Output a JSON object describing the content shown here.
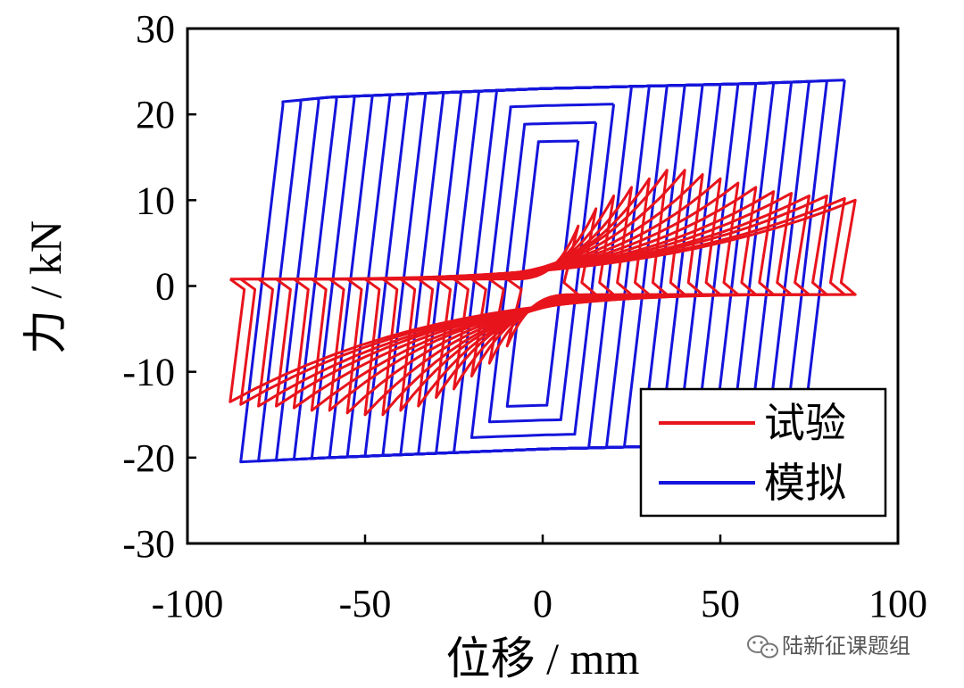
{
  "watermark": {
    "text": "陆新征课题组",
    "icon": "wechat-icon",
    "color": "#777777"
  },
  "chart_data": {
    "type": "line",
    "title": "",
    "xlabel": "位移 / mm",
    "ylabel": "力 / kN",
    "xlim": [
      -100,
      100
    ],
    "ylim": [
      -30,
      30
    ],
    "xticks": [
      -100,
      -50,
      0,
      50,
      100
    ],
    "yticks": [
      -30,
      -20,
      -10,
      0,
      10,
      20,
      30
    ],
    "xtick_labels": [
      "-100",
      "-50",
      "0",
      "50",
      "100"
    ],
    "ytick_labels": [
      "-30",
      "-20",
      "-10",
      "0",
      "10",
      "20",
      "30"
    ],
    "grid": false,
    "legend_position": "bottom-right",
    "series": [
      {
        "name": "试验",
        "color": "#e8141c",
        "kind": "pinched-hysteresis",
        "envelope_x": [
          5,
          10,
          15,
          20,
          25,
          30,
          35,
          40,
          45,
          50,
          55,
          60,
          65,
          70,
          75,
          80,
          85,
          88
        ],
        "envelope_pos_y": [
          5.5,
          7.0,
          9.0,
          10.5,
          11.5,
          12.5,
          13.5,
          13.5,
          13.0,
          12.5,
          12.0,
          11.5,
          11.0,
          10.8,
          10.5,
          10.5,
          10.2,
          10.0
        ],
        "envelope_neg_y": [
          -5.0,
          -7.0,
          -9.0,
          -10.5,
          -12.0,
          -13.0,
          -14.0,
          -14.5,
          -15.0,
          -15.0,
          -14.8,
          -14.5,
          -14.5,
          -14.2,
          -14.0,
          -14.0,
          -13.8,
          -13.5
        ],
        "peak_abs_disp_mm": [
          10,
          15,
          20,
          25,
          30,
          35,
          40,
          45,
          50,
          55,
          60,
          65,
          70,
          75,
          80,
          85,
          88
        ],
        "zero_force_band_kN": 2.0
      },
      {
        "name": "模拟",
        "color": "#1414dc",
        "kind": "full-hysteresis",
        "cycle_amplitudes_mm": [
          10,
          15,
          20,
          25,
          30,
          35,
          40,
          45,
          50,
          55,
          60,
          65,
          70,
          75,
          80,
          85
        ],
        "upper_branch": {
          "x": [
            -85,
            -60,
            -30,
            0,
            30,
            60,
            85
          ],
          "y": [
            21.0,
            22.0,
            22.5,
            23.0,
            23.3,
            23.6,
            24.0
          ]
        },
        "lower_branch": {
          "x": [
            -85,
            -60,
            -30,
            0,
            30,
            60,
            85
          ],
          "y": [
            -20.5,
            -20.0,
            -19.5,
            -19.0,
            -18.7,
            -18.3,
            -18.0
          ]
        },
        "elastic_stiffness_kN_per_mm": 3.5
      }
    ]
  }
}
